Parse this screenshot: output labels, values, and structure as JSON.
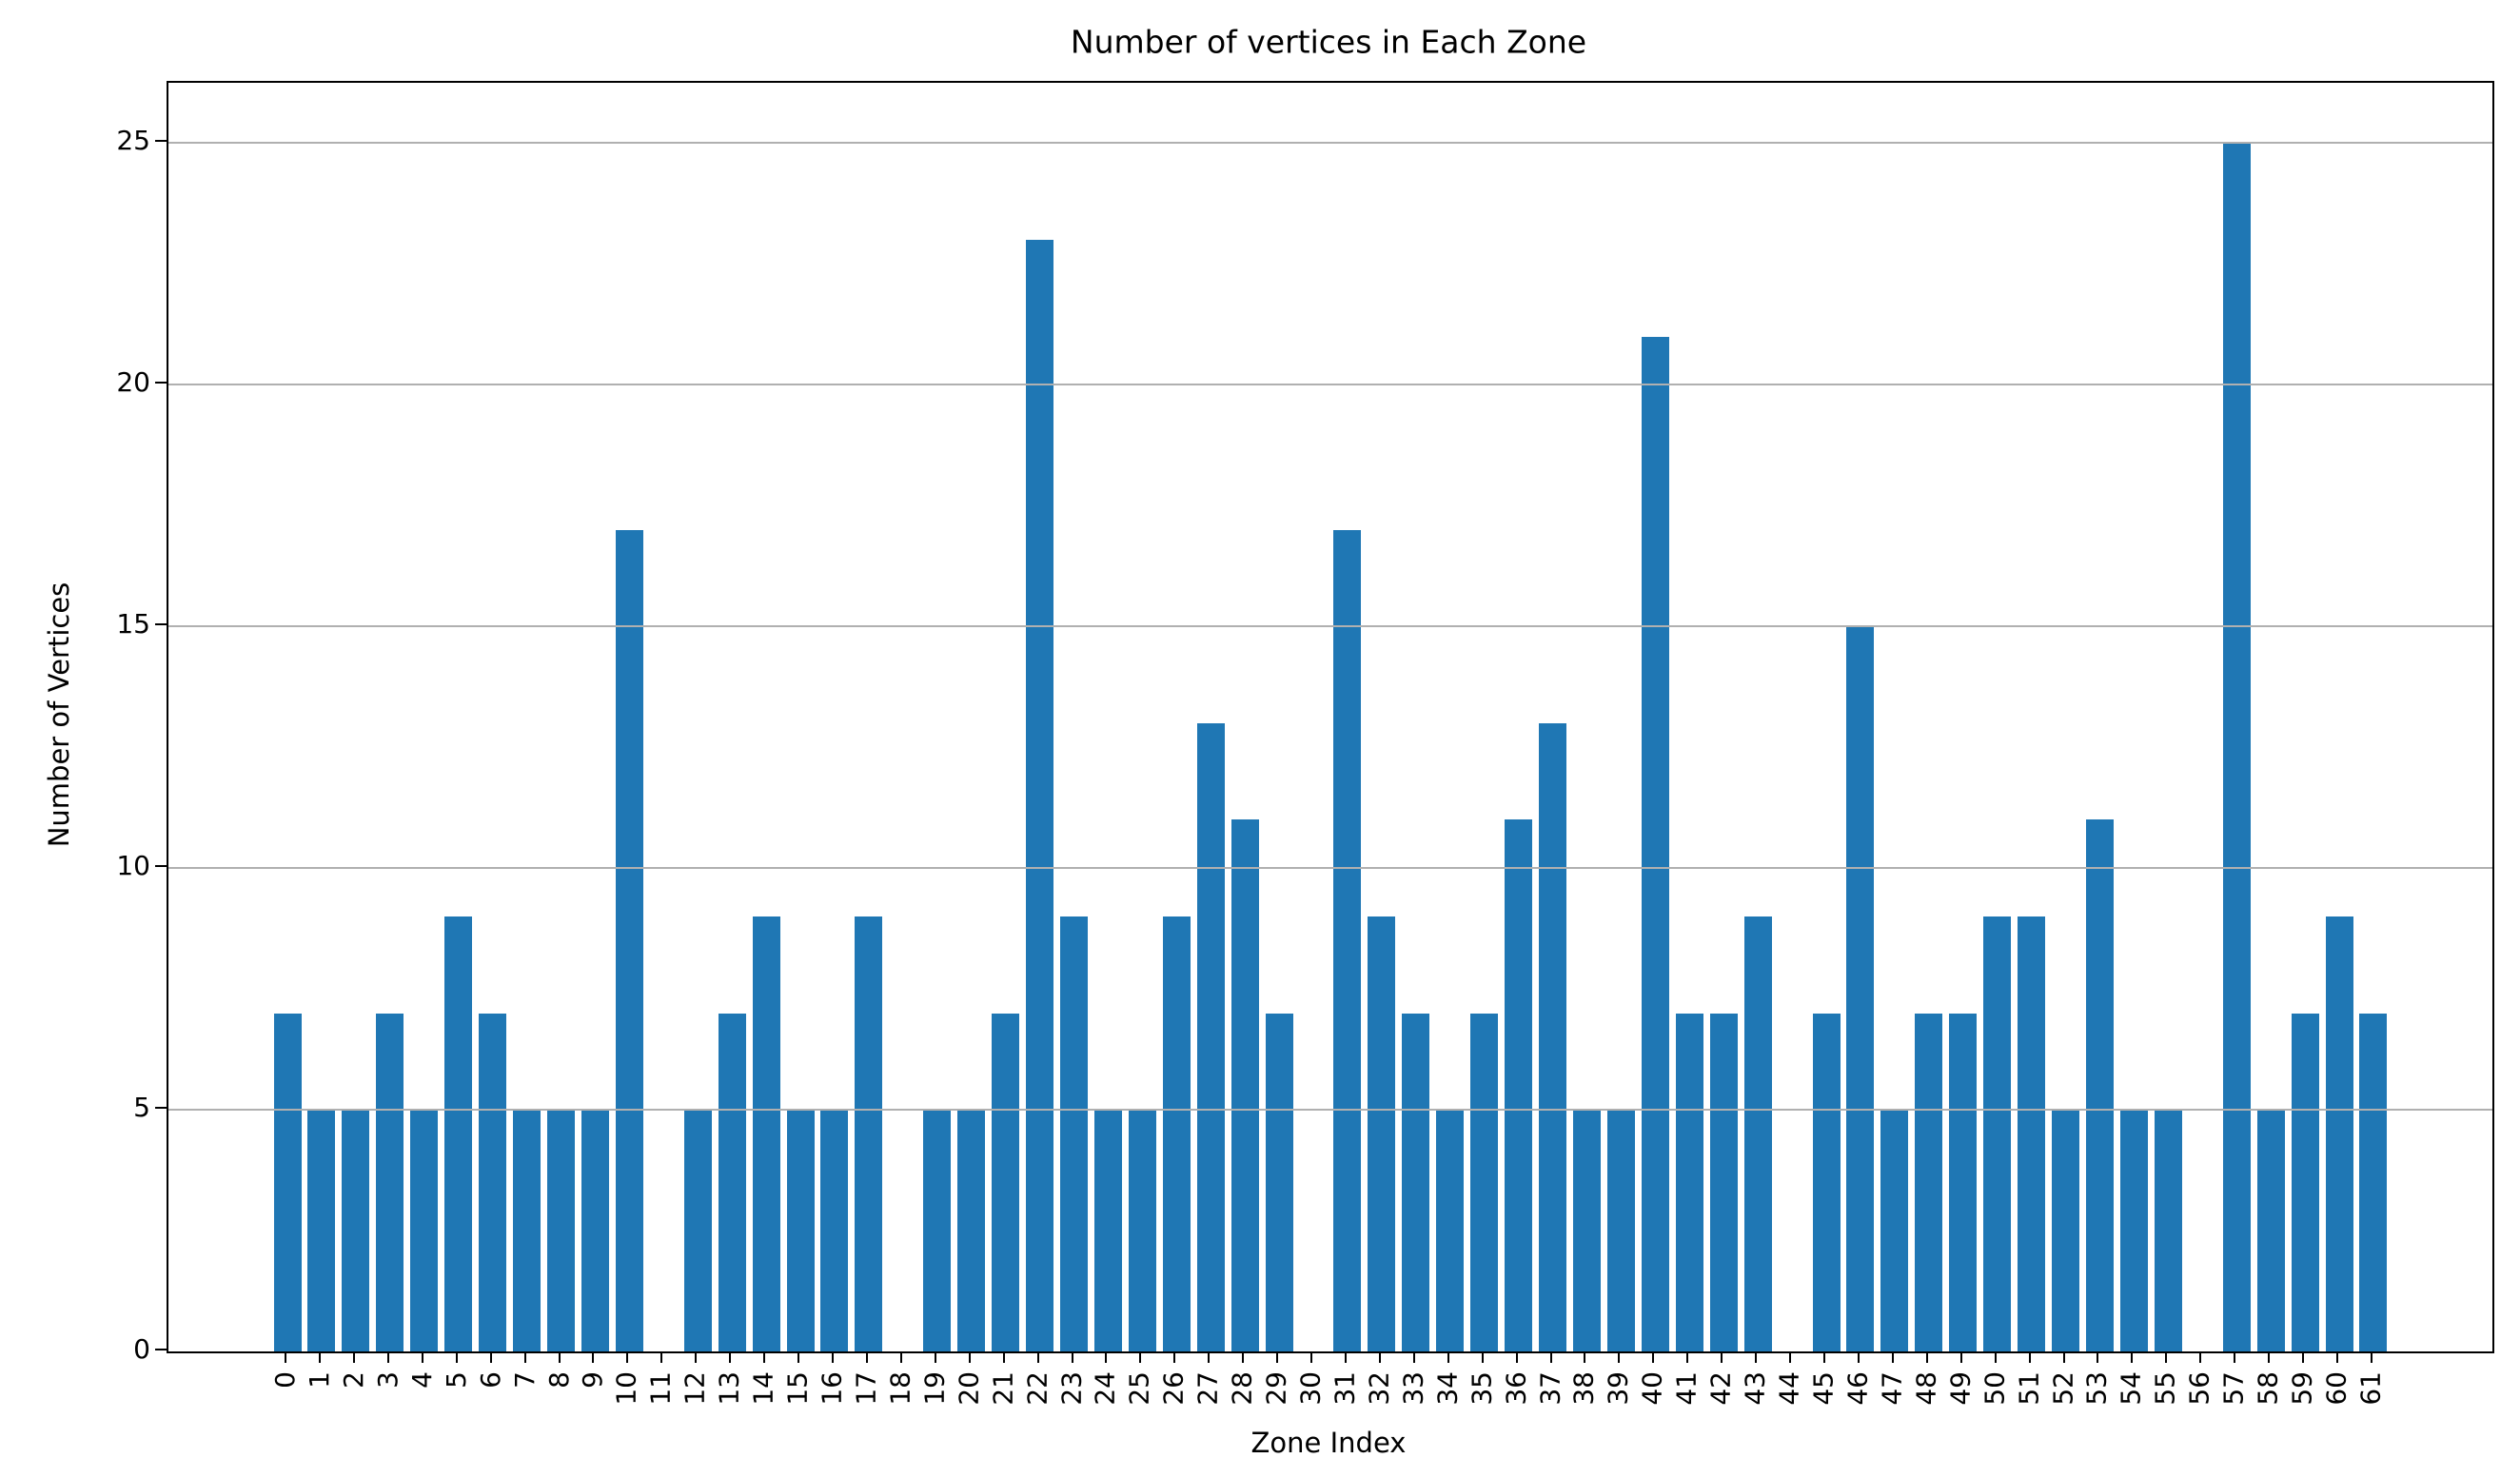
{
  "chart_data": {
    "type": "bar",
    "title": "Number of vertices in Each Zone",
    "xlabel": "Zone Index",
    "ylabel": "Number of Vertices",
    "categories": [
      "0",
      "1",
      "2",
      "3",
      "4",
      "5",
      "6",
      "7",
      "8",
      "9",
      "10",
      "11",
      "12",
      "13",
      "14",
      "15",
      "16",
      "17",
      "18",
      "19",
      "20",
      "21",
      "22",
      "23",
      "24",
      "25",
      "26",
      "27",
      "28",
      "29",
      "30",
      "31",
      "32",
      "33",
      "34",
      "35",
      "36",
      "37",
      "38",
      "39",
      "40",
      "41",
      "42",
      "43",
      "44",
      "45",
      "46",
      "47",
      "48",
      "49",
      "50",
      "51",
      "52",
      "53",
      "54",
      "55",
      "56",
      "57",
      "58",
      "59",
      "60",
      "61"
    ],
    "values": [
      7,
      5,
      5,
      7,
      5,
      9,
      7,
      5,
      5,
      5,
      17,
      0,
      5,
      7,
      9,
      5,
      5,
      9,
      0,
      5,
      5,
      7,
      23,
      9,
      5,
      5,
      9,
      13,
      11,
      7,
      0,
      17,
      9,
      7,
      5,
      7,
      11,
      13,
      5,
      5,
      21,
      7,
      7,
      9,
      0,
      7,
      15,
      5,
      7,
      7,
      9,
      9,
      5,
      11,
      5,
      5,
      0,
      25,
      5,
      7,
      9,
      7
    ],
    "yticks": [
      0,
      5,
      10,
      15,
      20,
      25
    ],
    "ylim": [
      0,
      26.25
    ],
    "xlim": [
      -3.48,
      64.48
    ],
    "bar_width_units": 0.8,
    "grid": true,
    "grid_above_bars": true,
    "legend": null,
    "bar_color": "#1f77b4",
    "grid_color": "#b0b0b0",
    "axis_color": "#000000"
  }
}
